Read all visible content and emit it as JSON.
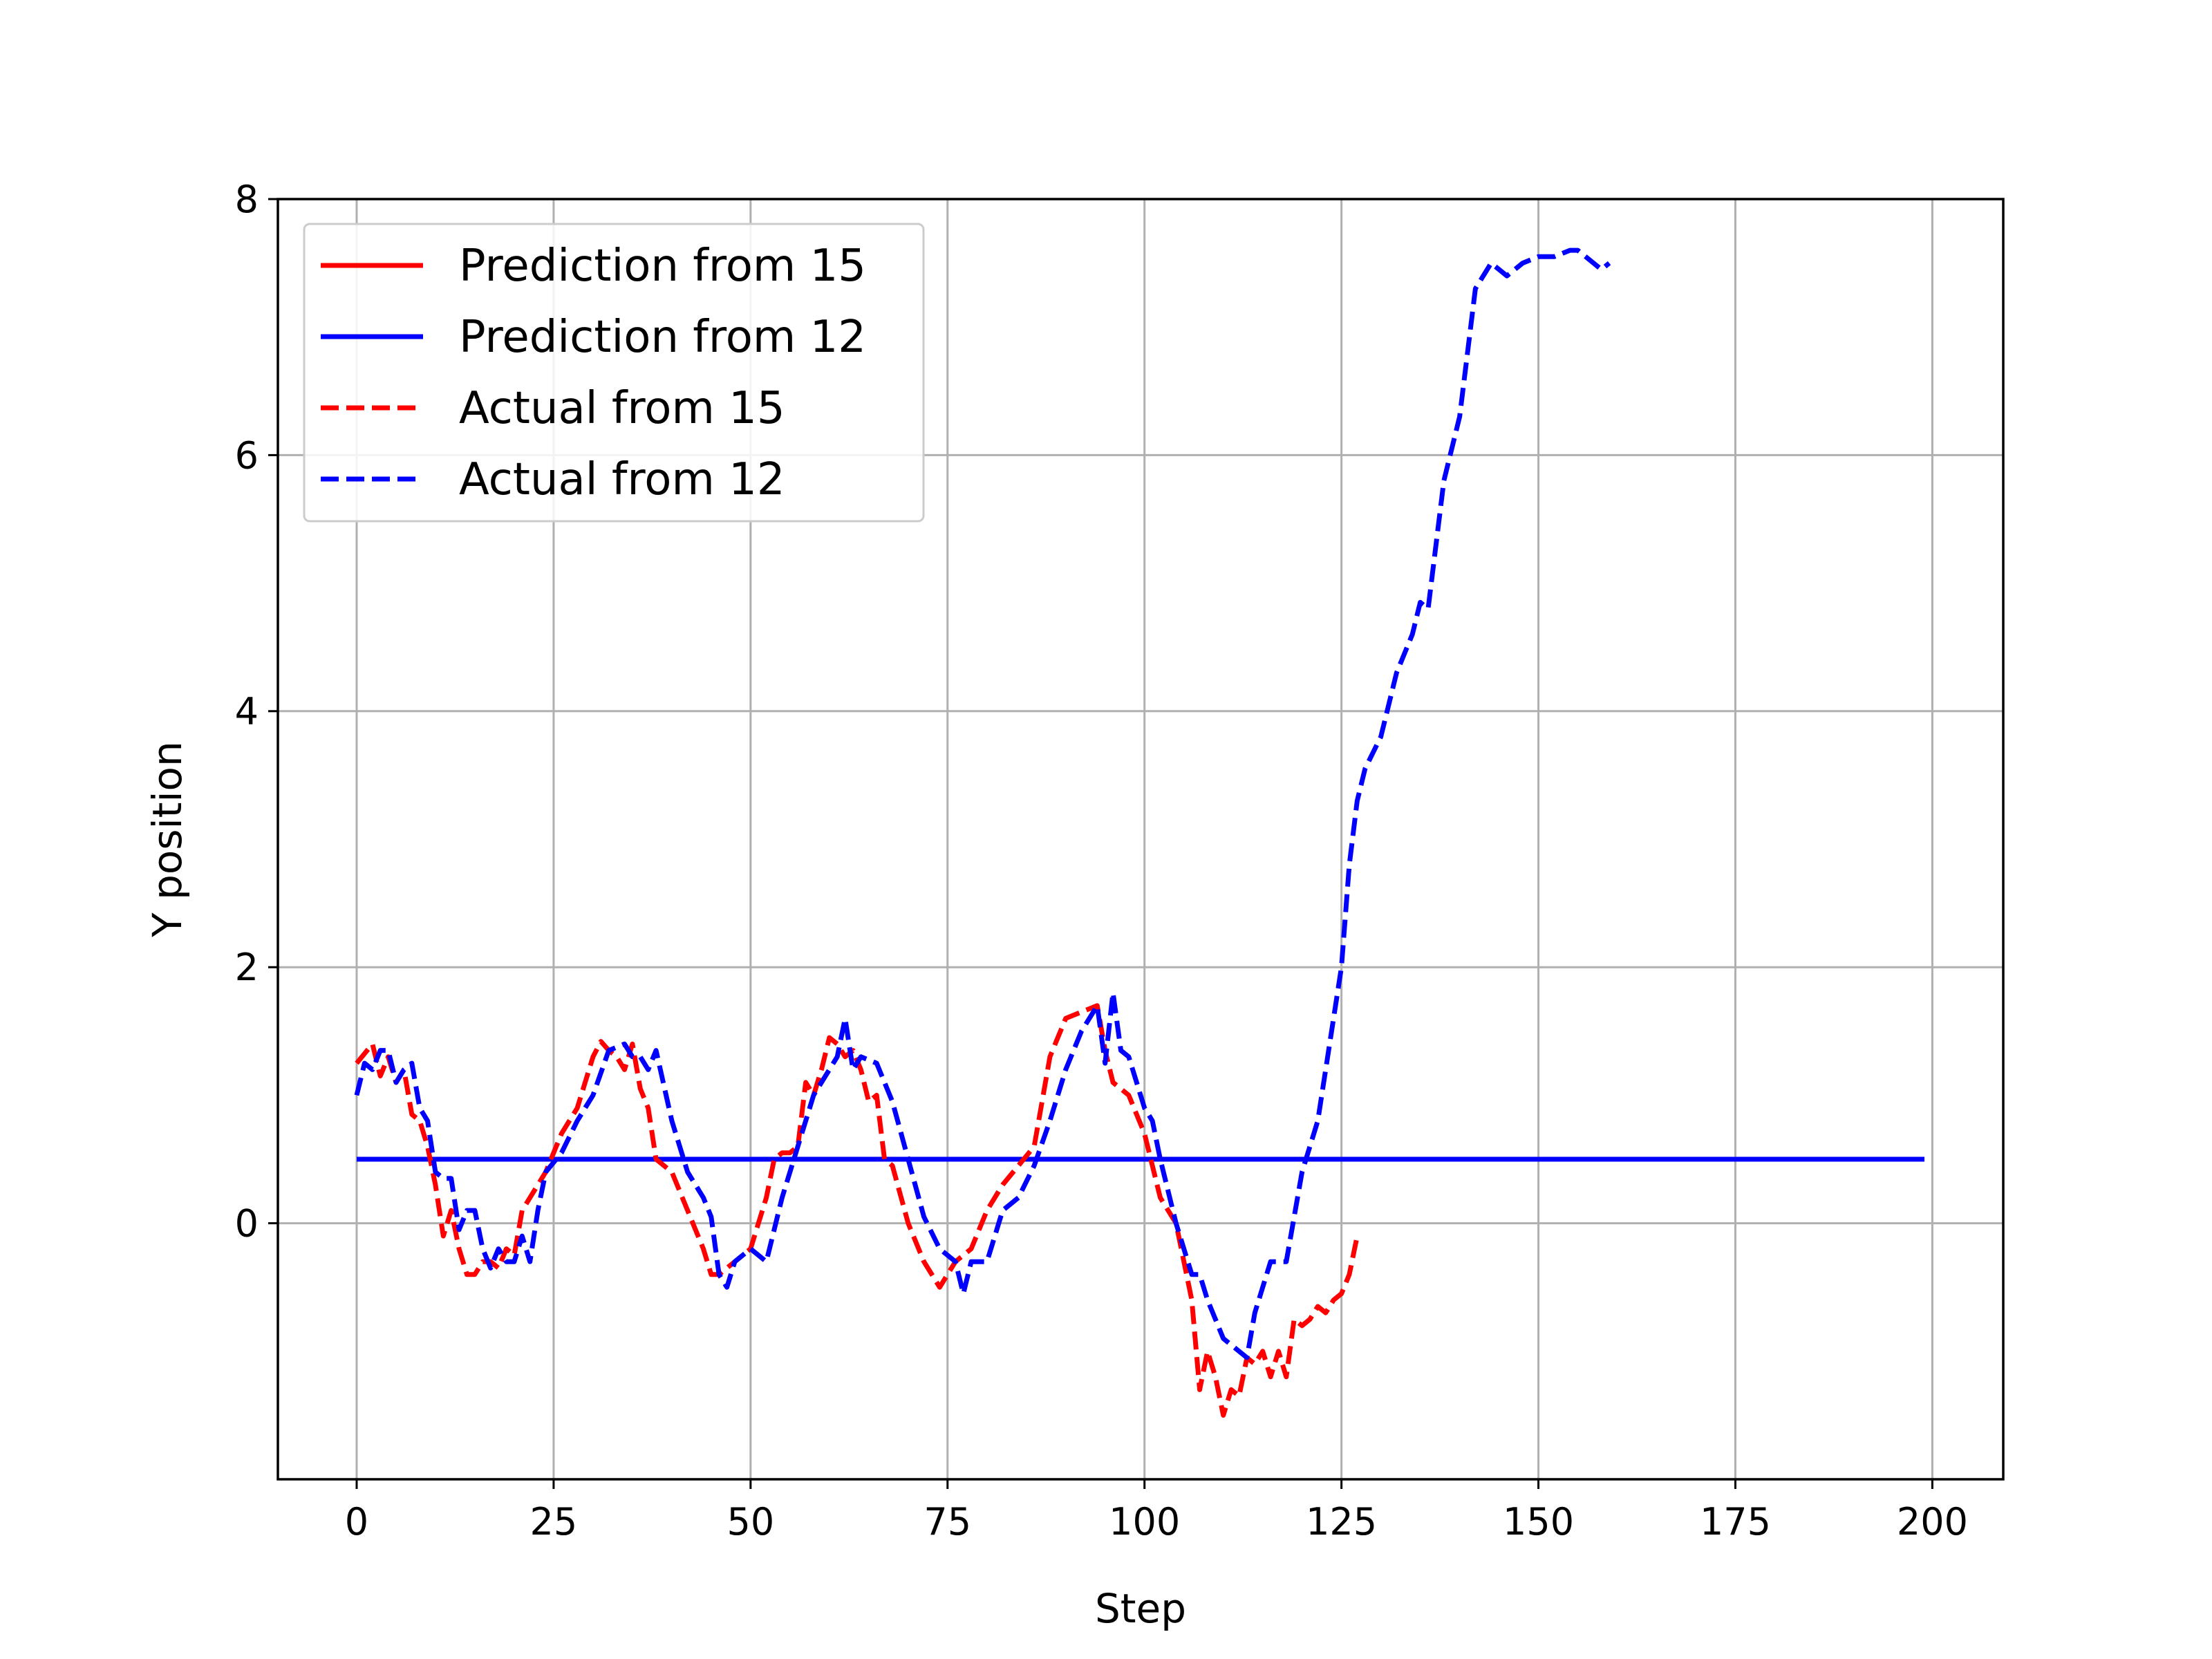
{
  "chart_data": {
    "type": "line",
    "title": "",
    "xlabel": "Step",
    "ylabel": "Y position",
    "xlim": [
      -10,
      209
    ],
    "ylim": [
      -2,
      8
    ],
    "xticks": [
      0,
      25,
      50,
      75,
      100,
      125,
      150,
      175,
      200
    ],
    "yticks": [
      0,
      2,
      4,
      6,
      8
    ],
    "xtick_labels": [
      "0",
      "25",
      "50",
      "75",
      "100",
      "125",
      "150",
      "175",
      "200"
    ],
    "ytick_labels": [
      "0",
      "2",
      "4",
      "6",
      "8"
    ],
    "grid": true,
    "legend_position": "top-left",
    "series": [
      {
        "name": "Prediction from 15",
        "color": "#ff0000",
        "style": "solid",
        "x": [
          0,
          199
        ],
        "y": [
          0.5,
          0.5
        ]
      },
      {
        "name": "Prediction from 12",
        "color": "#0000ff",
        "style": "solid",
        "x": [
          0,
          199
        ],
        "y": [
          0.5,
          0.5
        ]
      },
      {
        "name": "Actual from 15",
        "color": "#ff0000",
        "style": "dashed",
        "x": [
          0,
          2,
          3,
          4,
          5,
          6,
          7,
          8,
          9,
          10,
          11,
          12,
          13,
          14,
          15,
          16,
          17,
          18,
          19,
          20,
          21,
          22,
          24,
          26,
          28,
          30,
          31,
          32,
          33,
          34,
          35,
          36,
          37,
          38,
          40,
          42,
          44,
          45,
          46,
          47,
          48,
          50,
          52,
          53,
          54,
          55,
          56,
          57,
          58,
          59,
          60,
          61,
          62,
          63,
          64,
          65,
          66,
          67,
          68,
          70,
          72,
          74,
          76,
          78,
          80,
          82,
          84,
          86,
          88,
          90,
          92,
          94,
          95,
          96,
          97,
          98,
          100,
          102,
          104,
          106,
          107,
          108,
          109,
          110,
          111,
          112,
          113,
          114,
          115,
          116,
          117,
          118,
          119,
          120,
          121,
          122,
          123,
          124,
          125,
          126,
          127
        ],
        "y": [
          1.25,
          1.4,
          1.15,
          1.3,
          1.1,
          1.2,
          0.85,
          0.8,
          0.6,
          0.3,
          -0.1,
          0.1,
          -0.2,
          -0.4,
          -0.4,
          -0.3,
          -0.3,
          -0.35,
          -0.2,
          -0.25,
          0.1,
          0.2,
          0.4,
          0.7,
          0.9,
          1.3,
          1.42,
          1.35,
          1.3,
          1.2,
          1.4,
          1.05,
          0.9,
          0.5,
          0.4,
          0.1,
          -0.2,
          -0.4,
          -0.4,
          -0.35,
          -0.3,
          -0.2,
          0.2,
          0.5,
          0.55,
          0.55,
          0.6,
          1.1,
          1.0,
          1.2,
          1.45,
          1.4,
          1.3,
          1.35,
          1.2,
          0.95,
          1.0,
          0.5,
          0.45,
          0.0,
          -0.3,
          -0.5,
          -0.3,
          -0.2,
          0.1,
          0.3,
          0.45,
          0.6,
          1.3,
          1.6,
          1.65,
          1.7,
          1.35,
          1.1,
          1.05,
          1.0,
          0.7,
          0.2,
          0.0,
          -0.6,
          -1.3,
          -1.0,
          -1.2,
          -1.5,
          -1.3,
          -1.35,
          -1.05,
          -1.1,
          -1.0,
          -1.2,
          -1.0,
          -1.2,
          -0.75,
          -0.8,
          -0.75,
          -0.65,
          -0.7,
          -0.6,
          -0.55,
          -0.4,
          -0.1
        ]
      },
      {
        "name": "Actual from 12",
        "color": "#0000ff",
        "style": "dashed",
        "x": [
          0,
          1,
          2,
          3,
          4,
          5,
          6,
          7,
          8,
          9,
          10,
          11,
          12,
          13,
          14,
          15,
          16,
          17,
          18,
          19,
          20,
          21,
          22,
          23,
          24,
          26,
          28,
          30,
          32,
          34,
          35,
          36,
          37,
          38,
          40,
          42,
          44,
          45,
          46,
          47,
          48,
          50,
          52,
          54,
          56,
          58,
          60,
          61,
          62,
          63,
          64,
          66,
          68,
          70,
          72,
          74,
          76,
          77,
          78,
          80,
          82,
          84,
          86,
          88,
          90,
          92,
          93,
          94,
          95,
          96,
          97,
          98,
          100,
          101,
          102,
          104,
          106,
          107,
          108,
          110,
          112,
          113,
          114,
          116,
          118,
          120,
          122,
          124,
          125,
          126,
          127,
          128,
          130,
          132,
          134,
          135,
          136,
          138,
          140,
          142,
          144,
          146,
          148,
          150,
          152,
          154,
          155,
          156,
          158,
          159
        ],
        "y": [
          1.0,
          1.25,
          1.2,
          1.35,
          1.35,
          1.1,
          1.2,
          1.25,
          0.9,
          0.8,
          0.4,
          0.35,
          0.35,
          -0.05,
          0.1,
          0.1,
          -0.2,
          -0.35,
          -0.2,
          -0.3,
          -0.3,
          -0.1,
          -0.3,
          0.1,
          0.4,
          0.55,
          0.8,
          1.0,
          1.35,
          1.4,
          1.3,
          1.3,
          1.2,
          1.35,
          0.8,
          0.4,
          0.2,
          0.05,
          -0.4,
          -0.5,
          -0.3,
          -0.2,
          -0.3,
          0.2,
          0.6,
          1.0,
          1.2,
          1.3,
          1.6,
          1.2,
          1.3,
          1.25,
          0.95,
          0.5,
          0.05,
          -0.2,
          -0.3,
          -0.55,
          -0.3,
          -0.3,
          0.1,
          0.2,
          0.45,
          0.8,
          1.2,
          1.5,
          1.6,
          1.7,
          1.25,
          1.8,
          1.35,
          1.3,
          0.9,
          0.8,
          0.5,
          0.0,
          -0.4,
          -0.4,
          -0.6,
          -0.9,
          -1.0,
          -1.05,
          -0.7,
          -0.3,
          -0.3,
          0.4,
          0.8,
          1.6,
          2.0,
          2.8,
          3.3,
          3.55,
          3.8,
          4.3,
          4.6,
          4.85,
          4.8,
          5.8,
          6.3,
          7.3,
          7.5,
          7.4,
          7.5,
          7.55,
          7.55,
          7.6,
          7.6,
          7.55,
          7.45,
          7.5
        ]
      }
    ]
  }
}
